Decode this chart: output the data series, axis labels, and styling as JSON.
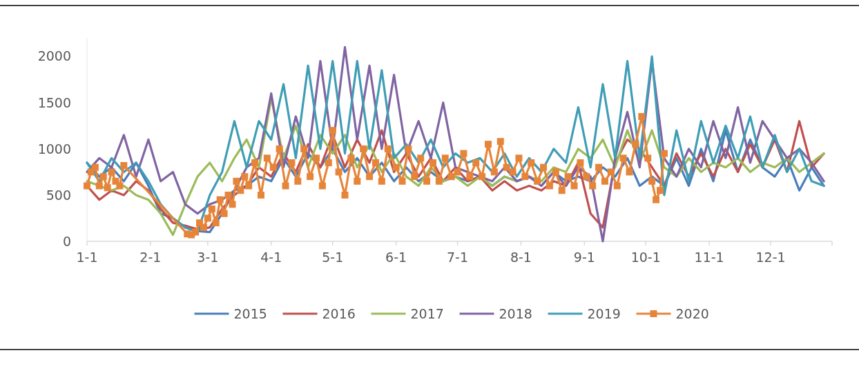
{
  "chart_data": {
    "type": "line",
    "x": [
      "--01-01",
      "--01-07",
      "--01-13",
      "--01-19",
      "--01-25",
      "--01-31",
      "--02-06",
      "--02-12",
      "--02-18",
      "--02-24",
      "--03-02",
      "--03-08",
      "--03-14",
      "--03-20",
      "--03-26",
      "--04-01",
      "--04-07",
      "--04-13",
      "--04-19",
      "--04-25",
      "--05-01",
      "--05-07",
      "--05-13",
      "--05-19",
      "--05-25",
      "--05-31",
      "--06-06",
      "--06-12",
      "--06-18",
      "--06-24",
      "--06-30",
      "--07-06",
      "--07-12",
      "--07-18",
      "--07-24",
      "--07-30",
      "--08-05",
      "--08-11",
      "--08-17",
      "--08-23",
      "--08-29",
      "--09-04",
      "--09-10",
      "--09-16",
      "--09-22",
      "--09-28",
      "--10-04",
      "--10-10",
      "--10-16",
      "--10-22",
      "--10-28",
      "--11-03",
      "--11-09",
      "--11-15",
      "--11-21",
      "--11-27",
      "--12-03",
      "--12-09",
      "--12-15",
      "--12-21",
      "--12-27"
    ],
    "xlim": [
      "--01-01",
      "--12-31"
    ],
    "xticks": [
      {
        "value": "--01-01",
        "label": "1-1"
      },
      {
        "value": "--02-01",
        "label": "2-1"
      },
      {
        "value": "--03-01",
        "label": "3-1"
      },
      {
        "value": "--04-01",
        "label": "4-1"
      },
      {
        "value": "--05-01",
        "label": "5-1"
      },
      {
        "value": "--06-01",
        "label": "6-1"
      },
      {
        "value": "--07-01",
        "label": "7-1"
      },
      {
        "value": "--08-01",
        "label": "8-1"
      },
      {
        "value": "--09-01",
        "label": "9-1"
      },
      {
        "value": "--10-01",
        "label": "10-1"
      },
      {
        "value": "--11-01",
        "label": "11-1"
      },
      {
        "value": "--12-01",
        "label": "12-1"
      }
    ],
    "ylim": [
      0,
      2200
    ],
    "yticks": [
      0,
      500,
      1000,
      1500,
      2000
    ],
    "grid": false,
    "legend": "bottom",
    "line_style": "solid",
    "series": [
      {
        "name": "2015",
        "color": "#4a7ebb",
        "values": [
          850,
          700,
          800,
          650,
          850,
          600,
          300,
          250,
          150,
          110,
          100,
          300,
          550,
          600,
          700,
          650,
          900,
          700,
          950,
          800,
          1000,
          750,
          900,
          700,
          850,
          650,
          800,
          650,
          750,
          650,
          700,
          650,
          700,
          600,
          700,
          650,
          700,
          600,
          750,
          650,
          700,
          650,
          800,
          700,
          900,
          600,
          700,
          600,
          900,
          600,
          1000,
          650,
          1200,
          750,
          1100,
          800,
          700,
          900,
          550,
          800,
          600
        ]
      },
      {
        "name": "2016",
        "color": "#c0504d",
        "values": [
          600,
          450,
          550,
          500,
          650,
          550,
          350,
          200,
          170,
          130,
          150,
          350,
          500,
          600,
          800,
          700,
          950,
          750,
          1050,
          800,
          1150,
          800,
          1100,
          850,
          1200,
          750,
          950,
          700,
          900,
          650,
          800,
          650,
          700,
          550,
          650,
          550,
          600,
          550,
          650,
          600,
          850,
          300,
          150,
          850,
          1100,
          1000,
          800,
          600,
          950,
          700,
          950,
          700,
          1000,
          750,
          1050,
          800,
          1100,
          750,
          1300,
          800,
          950
        ]
      },
      {
        "name": "2017",
        "color": "#9bbb59",
        "values": [
          650,
          600,
          550,
          600,
          500,
          450,
          300,
          70,
          400,
          700,
          850,
          650,
          900,
          1100,
          800,
          1550,
          900,
          1250,
          800,
          1150,
          950,
          1150,
          800,
          1050,
          750,
          950,
          700,
          600,
          800,
          650,
          700,
          600,
          700,
          600,
          700,
          650,
          700,
          650,
          800,
          750,
          1000,
          900,
          1100,
          800,
          1200,
          850,
          1200,
          800,
          700,
          900,
          750,
          850,
          800,
          900,
          750,
          850,
          800,
          900,
          750,
          850,
          950
        ]
      },
      {
        "name": "2018",
        "color": "#8064a2",
        "values": [
          750,
          900,
          800,
          1150,
          700,
          1100,
          650,
          750,
          400,
          300,
          400,
          450,
          550,
          800,
          900,
          1600,
          800,
          1350,
          900,
          1950,
          1000,
          2100,
          1100,
          1900,
          1000,
          1800,
          950,
          1300,
          900,
          1500,
          800,
          750,
          700,
          650,
          800,
          650,
          700,
          600,
          750,
          600,
          800,
          700,
          0,
          900,
          1400,
          800,
          1950,
          900,
          700,
          1000,
          800,
          1300,
          900,
          1450,
          850,
          1300,
          1100,
          900,
          1000,
          850,
          650
        ]
      },
      {
        "name": "2019",
        "color": "#3f9db5",
        "values": [
          850,
          650,
          900,
          750,
          850,
          650,
          400,
          250,
          150,
          100,
          500,
          750,
          1300,
          800,
          1300,
          1100,
          1700,
          900,
          1900,
          1000,
          1950,
          950,
          1950,
          1000,
          1850,
          900,
          1050,
          850,
          1100,
          800,
          950,
          850,
          900,
          750,
          950,
          700,
          900,
          750,
          1000,
          850,
          1450,
          800,
          1700,
          900,
          1950,
          900,
          2000,
          500,
          1200,
          650,
          1300,
          850,
          1250,
          900,
          1350,
          800,
          1150,
          750,
          1000,
          650,
          600
        ]
      },
      {
        "name": "2020",
        "color": "#e6853a",
        "marker": "square",
        "x": [
          "--01-01",
          "--01-03",
          "--01-05",
          "--01-07",
          "--01-09",
          "--01-11",
          "--01-13",
          "--01-15",
          "--01-17",
          "--01-19",
          "--02-19",
          "--02-21",
          "--02-23",
          "--02-25",
          "--02-27",
          "--03-01",
          "--03-03",
          "--03-05",
          "--03-07",
          "--03-09",
          "--03-11",
          "--03-13",
          "--03-15",
          "--03-17",
          "--03-19",
          "--03-21",
          "--03-24",
          "--03-27",
          "--03-30",
          "--04-02",
          "--04-05",
          "--04-08",
          "--04-11",
          "--04-14",
          "--04-17",
          "--04-20",
          "--04-23",
          "--04-26",
          "--04-29",
          "--05-01",
          "--05-04",
          "--05-07",
          "--05-10",
          "--05-13",
          "--05-16",
          "--05-19",
          "--05-22",
          "--05-25",
          "--05-28",
          "--06-01",
          "--06-04",
          "--06-07",
          "--06-10",
          "--06-13",
          "--06-16",
          "--06-19",
          "--06-22",
          "--06-25",
          "--06-28",
          "--07-01",
          "--07-04",
          "--07-07",
          "--07-10",
          "--07-13",
          "--07-16",
          "--07-19",
          "--07-22",
          "--07-25",
          "--07-28",
          "--07-31",
          "--08-03",
          "--08-06",
          "--08-09",
          "--08-12",
          "--08-15",
          "--08-18",
          "--08-21",
          "--08-24",
          "--08-27",
          "--08-30",
          "--09-02",
          "--09-05",
          "--09-08",
          "--09-11",
          "--09-14",
          "--09-17",
          "--09-20",
          "--09-23",
          "--09-26",
          "--09-29",
          "--10-02",
          "--10-04",
          "--10-06",
          "--10-08",
          "--10-10"
        ],
        "values": [
          600,
          750,
          800,
          600,
          700,
          580,
          750,
          650,
          600,
          820,
          80,
          70,
          100,
          200,
          150,
          250,
          350,
          200,
          450,
          300,
          500,
          400,
          650,
          550,
          700,
          600,
          850,
          500,
          900,
          800,
          1000,
          600,
          850,
          650,
          1000,
          700,
          900,
          600,
          850,
          1200,
          750,
          500,
          900,
          650,
          1000,
          700,
          850,
          650,
          1000,
          800,
          650,
          1000,
          700,
          900,
          650,
          850,
          650,
          900,
          700,
          750,
          950,
          700,
          850,
          700,
          1050,
          750,
          1080,
          800,
          750,
          900,
          700,
          850,
          650,
          800,
          600,
          750,
          550,
          700,
          600,
          850,
          700,
          600,
          800,
          650,
          750,
          600,
          900,
          750,
          1050,
          1350,
          900,
          650,
          450,
          550,
          950
        ]
      }
    ]
  }
}
